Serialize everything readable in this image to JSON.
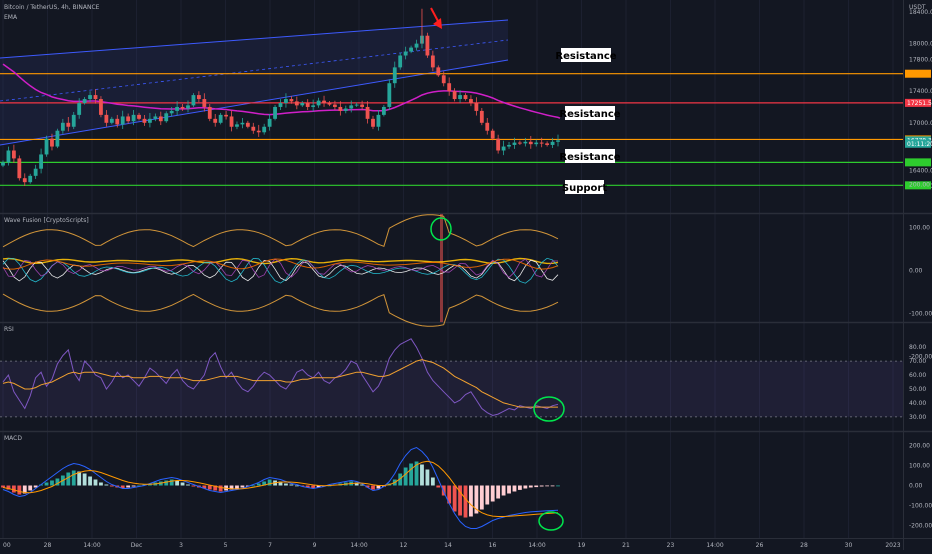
{
  "header": {
    "symbol_line": "Bitcoin / TetherUS, 4h, BINANCE",
    "indicator": "EMA",
    "currency": "USDT"
  },
  "colors": {
    "background": "#131722",
    "up": "#26a69a",
    "down": "#ef5350",
    "ema": "#d01fc8",
    "channel": "#3d5afe",
    "resistance_orange": "#ff9800",
    "resistance_red": "#f23645",
    "support_green": "#2ecc2e",
    "circle_green": "#00e64d",
    "arrow_red": "#ff1e1e",
    "rsi_line": "#7e57c2",
    "rsi_ma": "#f0a030",
    "macd_line": "#2962ff",
    "signal_line": "#ff9800"
  },
  "annotations": [
    {
      "id": "resistance-1",
      "text": "Resistance"
    },
    {
      "id": "resistance-2",
      "text": "Resistance"
    },
    {
      "id": "resistance-3",
      "text": "Resistance"
    },
    {
      "id": "support-1",
      "text": "Support"
    }
  ],
  "price_axis": {
    "ticks": [
      {
        "label": "18400.00",
        "value": 18400
      },
      {
        "label": "18000.00",
        "value": 18000
      },
      {
        "label": "17800.00",
        "value": 17800
      },
      {
        "label": "17400.00",
        "value": 17400
      },
      {
        "label": "17000.00",
        "value": 17000
      },
      {
        "label": "16400.00",
        "value": 16400
      },
      {
        "label": "16200.00",
        "value": 16200
      }
    ],
    "tags": [
      {
        "label": "17251.59",
        "value": 17251.59,
        "color": "#f23645"
      },
      {
        "label": "16778.32",
        "value": 16778.32,
        "color": "#26a69a"
      },
      {
        "label": "01:11:20",
        "value": 16735,
        "color": "#26a69a"
      }
    ]
  },
  "panes": {
    "wave_fusion": {
      "label": "Wave Fusion [CryptoScripts]",
      "ticks": [
        {
          "label": "200.00",
          "value": 200
        },
        {
          "label": "100.00",
          "value": 100
        },
        {
          "label": "0.00",
          "value": 0
        },
        {
          "label": "-100.00",
          "value": -100
        },
        {
          "label": "-200.00",
          "value": -200
        }
      ]
    },
    "rsi": {
      "label": "RSI",
      "ticks": [
        {
          "label": "80.00",
          "value": 80
        },
        {
          "label": "70.00",
          "value": 70
        },
        {
          "label": "60.00",
          "value": 60
        },
        {
          "label": "50.00",
          "value": 50
        },
        {
          "label": "40.00",
          "value": 40
        },
        {
          "label": "30.00",
          "value": 30
        }
      ]
    },
    "macd": {
      "label": "MACD",
      "ticks": [
        {
          "label": "200.00",
          "value": 200
        },
        {
          "label": "100.00",
          "value": 100
        },
        {
          "label": "0.00",
          "value": 0
        },
        {
          "label": "-100.00",
          "value": -100
        },
        {
          "label": "-200.00",
          "value": -200
        }
      ]
    }
  },
  "time_axis": {
    "labels": [
      "00",
      "28",
      "14:00",
      "Dec",
      "3",
      "5",
      "7",
      "9",
      "14:00",
      "12",
      "14",
      "16",
      "14:00",
      "19",
      "21",
      "23",
      "14:00",
      "26",
      "28",
      "30",
      "2023"
    ]
  },
  "chart_data": {
    "type": "candlestick",
    "symbol": "Bitcoin / TetherUS",
    "interval": "4h",
    "exchange": "BINANCE",
    "y_range": [
      16050,
      18450
    ],
    "reference_levels": [
      {
        "name": "Resistance",
        "value": 17620,
        "color": "#ff9800"
      },
      {
        "name": "Resistance",
        "value": 17251.59,
        "color": "#f23645"
      },
      {
        "name": "Resistance",
        "value": 16790,
        "color": "#ff9800"
      },
      {
        "name": "Support",
        "value": 16500,
        "color": "#2ecc2e"
      },
      {
        "name": "Support",
        "value": 16210,
        "color": "#2ecc2e"
      }
    ],
    "close_path": [
      16500,
      16650,
      16550,
      16300,
      16250,
      16330,
      16420,
      16600,
      16800,
      16700,
      16900,
      17000,
      16950,
      17100,
      17250,
      17300,
      17350,
      17300,
      17100,
      17000,
      17050,
      16980,
      17080,
      17020,
      17100,
      17050,
      17000,
      17050,
      17080,
      17020,
      17120,
      17150,
      17200,
      17180,
      17220,
      17350,
      17300,
      17200,
      17050,
      17000,
      17100,
      17080,
      16950,
      16980,
      17000,
      16950,
      16900,
      16880,
      16950,
      17050,
      17200,
      17250,
      17300,
      17270,
      17220,
      17250,
      17200,
      17220,
      17280,
      17250,
      17230,
      17200,
      17150,
      17180,
      17220,
      17230,
      17200,
      17050,
      16950,
      17100,
      17200,
      17500,
      17700,
      17850,
      17900,
      17950,
      18000,
      18100,
      17850,
      17700,
      17600,
      17500,
      17400,
      17300,
      17350,
      17300,
      17250,
      17150,
      17000,
      16900,
      16800,
      16650,
      16700,
      16720,
      16750,
      16740,
      16760,
      16730,
      16750,
      16740,
      16720,
      16760,
      16778
    ],
    "wave_fusion": {
      "series": [
        "orange-band-upper",
        "orange-band-lower",
        "gold",
        "white",
        "teal",
        "purple"
      ]
    },
    "rsi": {
      "ylim": [
        22,
        88
      ],
      "band": [
        30,
        70
      ],
      "values": [
        55,
        60,
        48,
        42,
        36,
        45,
        58,
        62,
        52,
        57,
        68,
        74,
        78,
        62,
        56,
        70,
        66,
        60,
        58,
        50,
        55,
        62,
        58,
        60,
        56,
        52,
        58,
        65,
        62,
        58,
        54,
        60,
        64,
        56,
        52,
        50,
        55,
        60,
        72,
        76,
        66,
        58,
        62,
        55,
        50,
        48,
        52,
        58,
        62,
        60,
        56,
        52,
        50,
        55,
        62,
        64,
        60,
        58,
        62,
        56,
        54,
        58,
        60,
        64,
        70,
        68,
        60,
        54,
        48,
        52,
        60,
        72,
        78,
        82,
        84,
        86,
        80,
        72,
        62,
        56,
        52,
        48,
        44,
        40,
        42,
        46,
        48,
        42,
        36,
        33,
        31,
        32,
        34,
        36,
        35,
        38,
        37,
        36,
        38,
        37,
        36,
        38,
        39
      ],
      "ma_values": [
        54,
        55,
        54,
        52,
        50,
        50,
        51,
        53,
        54,
        55,
        57,
        59,
        61,
        62,
        61,
        62,
        62,
        62,
        61,
        60,
        59,
        59,
        59,
        59,
        58,
        58,
        58,
        59,
        59,
        59,
        58,
        58,
        58,
        58,
        57,
        56,
        56,
        56,
        57,
        58,
        59,
        59,
        59,
        59,
        58,
        57,
        56,
        56,
        56,
        56,
        56,
        56,
        55,
        55,
        56,
        57,
        57,
        58,
        58,
        58,
        58,
        58,
        59,
        60,
        61,
        62,
        62,
        61,
        60,
        59,
        59,
        60,
        62,
        64,
        66,
        68,
        70,
        71,
        70,
        69,
        67,
        65,
        62,
        59,
        57,
        55,
        53,
        51,
        48,
        46,
        44,
        42,
        40,
        39,
        38,
        37,
        37,
        37,
        37,
        37,
        37,
        37,
        37
      ]
    },
    "macd": {
      "ylim": [
        -240,
        240
      ],
      "histogram": [
        -10,
        -20,
        -35,
        -45,
        -40,
        -25,
        -10,
        5,
        15,
        25,
        35,
        50,
        65,
        75,
        70,
        60,
        45,
        30,
        15,
        5,
        -5,
        -10,
        -15,
        -10,
        -5,
        0,
        5,
        10,
        15,
        20,
        25,
        30,
        25,
        15,
        5,
        -5,
        -10,
        -15,
        -20,
        -25,
        -30,
        -25,
        -20,
        -15,
        -10,
        -5,
        0,
        10,
        20,
        30,
        25,
        20,
        10,
        5,
        0,
        -5,
        -10,
        -15,
        -10,
        -5,
        0,
        5,
        10,
        15,
        20,
        15,
        5,
        -10,
        -20,
        -15,
        -5,
        10,
        30,
        60,
        90,
        110,
        120,
        105,
        80,
        40,
        -10,
        -50,
        -90,
        -130,
        -150,
        -160,
        -155,
        -140,
        -120,
        -95,
        -80,
        -65,
        -50,
        -40,
        -30,
        -22,
        -15,
        -10,
        -8,
        -5,
        -3,
        -2,
        0
      ],
      "macd_line": [
        -20,
        -30,
        -45,
        -55,
        -50,
        -35,
        -15,
        5,
        25,
        45,
        65,
        85,
        100,
        110,
        105,
        95,
        80,
        60,
        40,
        20,
        5,
        -5,
        -15,
        -15,
        -10,
        -5,
        0,
        10,
        20,
        30,
        35,
        40,
        35,
        25,
        15,
        5,
        -5,
        -15,
        -25,
        -30,
        -35,
        -30,
        -25,
        -20,
        -15,
        -5,
        5,
        15,
        30,
        40,
        35,
        30,
        20,
        10,
        5,
        -5,
        -10,
        -15,
        -10,
        -5,
        5,
        10,
        15,
        20,
        25,
        20,
        10,
        -10,
        -25,
        -20,
        -5,
        20,
        60,
        110,
        150,
        180,
        190,
        170,
        140,
        90,
        30,
        -30,
        -90,
        -140,
        -180,
        -205,
        -215,
        -215,
        -205,
        -190,
        -175,
        -165,
        -158,
        -150,
        -145,
        -140,
        -135,
        -132,
        -130,
        -128,
        -126,
        -125,
        -124
      ],
      "signal_line": [
        -10,
        -15,
        -22,
        -30,
        -35,
        -36,
        -32,
        -25,
        -15,
        -5,
        10,
        25,
        40,
        55,
        65,
        72,
        75,
        72,
        65,
        55,
        45,
        35,
        25,
        17,
        12,
        8,
        6,
        6,
        8,
        12,
        17,
        22,
        25,
        25,
        23,
        19,
        14,
        8,
        2,
        -4,
        -10,
        -14,
        -16,
        -17,
        -16,
        -13,
        -9,
        -4,
        2,
        9,
        14,
        17,
        18,
        17,
        15,
        11,
        7,
        3,
        0,
        -1,
        0,
        2,
        4,
        7,
        10,
        12,
        12,
        9,
        4,
        0,
        0,
        4,
        15,
        34,
        57,
        82,
        103,
        116,
        121,
        115,
        98,
        72,
        40,
        4,
        -32,
        -67,
        -96,
        -119,
        -136,
        -147,
        -153,
        -155,
        -155,
        -154,
        -152,
        -150,
        -148,
        -146,
        -144,
        -142,
        -140,
        -138,
        -136
      ]
    }
  }
}
